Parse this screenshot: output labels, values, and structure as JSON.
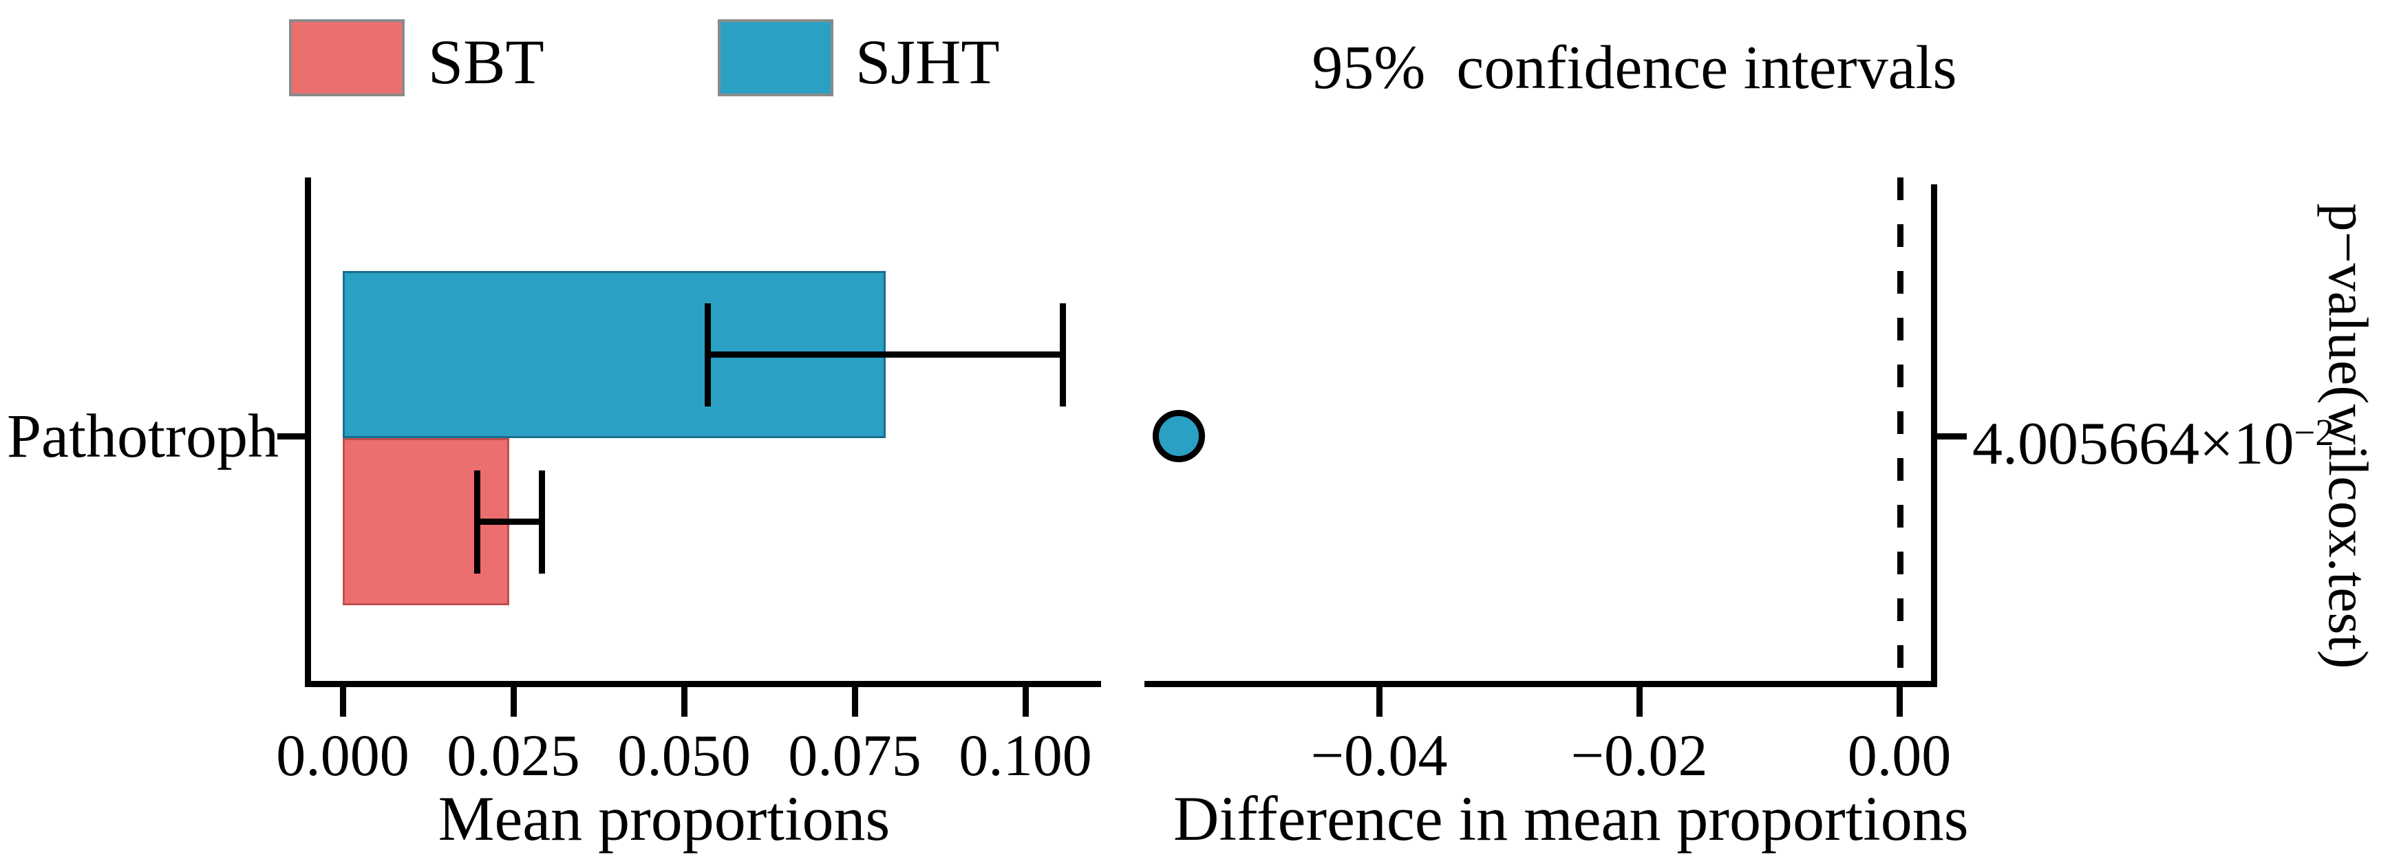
{
  "legend": {
    "items": [
      {
        "label": "SBT",
        "color": "#ec6f6f"
      },
      {
        "label": "SJHT",
        "color": "#2ba0c5"
      }
    ]
  },
  "right_panel_title": "95%  confidence intervals",
  "left_axis": {
    "category_label": "Pathotroph",
    "xlabel": "Mean proportions"
  },
  "right_axis": {
    "xlabel": "Difference in mean proportions",
    "ylabel_right": "p−value(wilcox.test)",
    "pvalue_base": "4.005664×10",
    "pvalue_exp": "−2"
  },
  "chart_data": [
    {
      "type": "bar",
      "orientation": "horizontal",
      "panel": "left",
      "categories": [
        "Pathotroph"
      ],
      "series": [
        {
          "name": "SJHT",
          "color": "#2ba0c5",
          "values": [
            0.0795
          ],
          "ci_low": [
            0.0535
          ],
          "ci_high": [
            0.1055
          ]
        },
        {
          "name": "SBT",
          "color": "#ec6f6f",
          "values": [
            0.0244
          ],
          "ci_low": [
            0.0197
          ],
          "ci_high": [
            0.0292
          ]
        }
      ],
      "xlabel": "Mean proportions",
      "xticks": [
        0,
        0.025,
        0.05,
        0.075,
        0.1
      ],
      "xtick_labels": [
        "0.000",
        "0.025",
        "0.050",
        "0.075",
        "0.100"
      ],
      "xlim": [
        -0.0055,
        0.111
      ],
      "error_bars": "95% confidence interval",
      "legend_position": "top"
    },
    {
      "type": "scatter",
      "panel": "right",
      "title": "95%  confidence intervals",
      "points": [
        {
          "category": "Pathotroph",
          "x": -0.0554,
          "color": "#2ba0c5",
          "p_value_label": "4.005664×10⁻²"
        }
      ],
      "xlabel": "Difference in mean proportions",
      "xticks": [
        -0.04,
        -0.02,
        0
      ],
      "xtick_labels": [
        "−0.04",
        "−0.02",
        "0.00"
      ],
      "xlim": [
        -0.0581,
        0.0025
      ],
      "zero_line_x": 0,
      "zero_line_style": "dashed",
      "right_axis_label": "p−value(wilcox.test)"
    }
  ]
}
